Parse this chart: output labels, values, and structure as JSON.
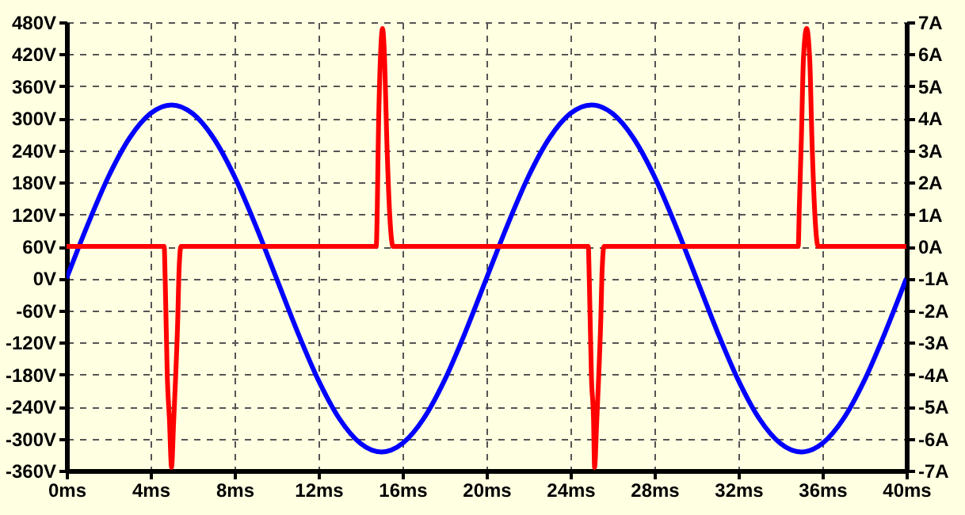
{
  "chart_data": {
    "type": "line",
    "xlim": [
      0,
      40
    ],
    "xticks": [
      {
        "value": 0,
        "label": "0ms"
      },
      {
        "value": 4,
        "label": "4ms"
      },
      {
        "value": 8,
        "label": "8ms"
      },
      {
        "value": 12,
        "label": "12ms"
      },
      {
        "value": 16,
        "label": "16ms"
      },
      {
        "value": 20,
        "label": "20ms"
      },
      {
        "value": 24,
        "label": "24ms"
      },
      {
        "value": 28,
        "label": "28ms"
      },
      {
        "value": 32,
        "label": "32ms"
      },
      {
        "value": 36,
        "label": "36ms"
      },
      {
        "value": 40,
        "label": "40ms"
      }
    ],
    "ylim": [
      -360,
      480
    ],
    "yticks": [
      {
        "value": -360,
        "label": "-360V"
      },
      {
        "value": -300,
        "label": "-300V"
      },
      {
        "value": -240,
        "label": "-240V"
      },
      {
        "value": -180,
        "label": "-180V"
      },
      {
        "value": -120,
        "label": "-120V"
      },
      {
        "value": -60,
        "label": "-60V"
      },
      {
        "value": 0,
        "label": "0V"
      },
      {
        "value": 60,
        "label": "60V"
      },
      {
        "value": 120,
        "label": "120V"
      },
      {
        "value": 180,
        "label": "180V"
      },
      {
        "value": 240,
        "label": "240V"
      },
      {
        "value": 300,
        "label": "300V"
      },
      {
        "value": 360,
        "label": "360V"
      },
      {
        "value": 420,
        "label": "420V"
      },
      {
        "value": 480,
        "label": "480V"
      }
    ],
    "y2lim": [
      -7,
      7
    ],
    "y2ticks": [
      {
        "value": -7,
        "label": "-7A"
      },
      {
        "value": -6,
        "label": "-6A"
      },
      {
        "value": -5,
        "label": "-5A"
      },
      {
        "value": -4,
        "label": "-4A"
      },
      {
        "value": -3,
        "label": "-3A"
      },
      {
        "value": -2,
        "label": "-2A"
      },
      {
        "value": -1,
        "label": "-1A"
      },
      {
        "value": 0,
        "label": "0A"
      },
      {
        "value": 1,
        "label": "1A"
      },
      {
        "value": 2,
        "label": "2A"
      },
      {
        "value": 3,
        "label": "3A"
      },
      {
        "value": 4,
        "label": "4A"
      },
      {
        "value": 5,
        "label": "5A"
      },
      {
        "value": 6,
        "label": "6A"
      },
      {
        "value": 7,
        "label": "7A"
      }
    ],
    "grid": true,
    "series": [
      {
        "color": "#0000ff",
        "x": [
          0,
          1,
          2,
          3,
          4,
          5,
          6,
          7,
          8,
          9,
          10,
          11,
          12,
          13,
          14,
          15,
          16,
          17,
          18,
          19,
          20,
          21,
          22,
          23,
          24,
          25,
          26,
          27,
          28,
          29,
          30,
          31,
          32,
          33,
          34,
          35,
          36,
          37,
          38,
          39,
          40
        ],
        "values": [
          0,
          100,
          191,
          263,
          309,
          325,
          309,
          263,
          191,
          100,
          0,
          -100,
          -191,
          -263,
          -309,
          -325,
          -309,
          -263,
          -191,
          -100,
          0,
          100,
          191,
          263,
          309,
          325,
          309,
          263,
          191,
          100,
          0,
          -100,
          -191,
          -263,
          -309,
          -325,
          -309,
          -263,
          -191,
          -100,
          0
        ]
      },
      {
        "color": "#ff0000",
        "axis": "y2",
        "x": [
          0,
          4.65,
          4.7,
          4.8,
          4.9,
          5.0,
          5.1,
          5.2,
          5.3,
          5.35,
          5.45,
          14.75,
          14.8,
          14.85,
          14.95,
          15.05,
          15.15,
          15.25,
          15.4,
          15.55,
          24.85,
          24.9,
          25.0,
          25.1,
          25.15,
          25.25,
          25.35,
          25.45,
          25.5,
          25.6,
          34.85,
          34.9,
          35.0,
          35.1,
          35.25,
          35.4,
          35.5,
          35.65,
          35.8,
          40
        ],
        "values": [
          0,
          0,
          -1.1,
          -4.1,
          -5.4,
          -6.9,
          -5.5,
          -4.0,
          -2.2,
          -0.9,
          0,
          0,
          1.2,
          3.4,
          5.9,
          6.8,
          5.8,
          3.4,
          0.9,
          0,
          0,
          -1.1,
          -4.1,
          -5.4,
          -6.9,
          -5.5,
          -4.0,
          -2.2,
          -0.9,
          0,
          0,
          1.2,
          3.4,
          5.9,
          6.8,
          5.8,
          3.4,
          0.9,
          0,
          0
        ]
      }
    ]
  }
}
